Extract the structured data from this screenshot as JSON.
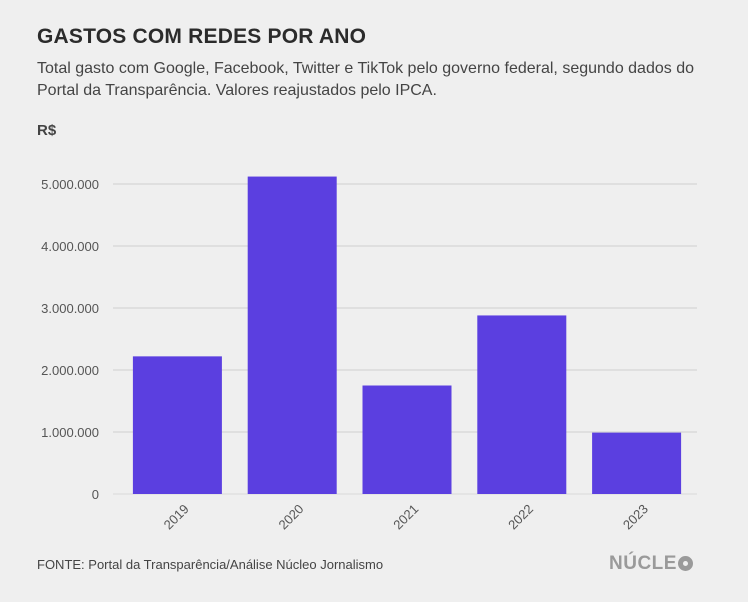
{
  "header": {
    "title": "GASTOS COM REDES POR ANO",
    "subtitle": "Total gasto com Google, Facebook, Twitter e TikTok pelo governo federal, segundo dados do Portal da Transparência. Valores reajustados pelo IPCA.",
    "unit": "R$"
  },
  "footer": {
    "source": "FONTE: Portal da Transparência/Análise Núcleo Jornalismo",
    "logo": "NÚCLEO"
  },
  "colors": {
    "bar": "#5b3fe0",
    "grid": "#cfcfcf",
    "background": "#efefef"
  },
  "chart_data": {
    "type": "bar",
    "title": "GASTOS COM REDES POR ANO",
    "subtitle": "Total gasto com Google, Facebook, Twitter e TikTok pelo governo federal, segundo dados do Portal da Transparência. Valores reajustados pelo IPCA.",
    "ylabel": "R$",
    "xlabel": "",
    "categories": [
      "2019",
      "2020",
      "2021",
      "2022",
      "2023"
    ],
    "values": [
      2220000,
      5120000,
      1750000,
      2880000,
      990000
    ],
    "ylim": [
      0,
      5000000
    ],
    "yticks": [
      0,
      1000000,
      2000000,
      3000000,
      4000000,
      5000000
    ],
    "ytick_labels": [
      "0",
      "1.000.000",
      "2.000.000",
      "3.000.000",
      "4.000.000",
      "5.000.000"
    ],
    "grid": true,
    "legend": "none"
  }
}
